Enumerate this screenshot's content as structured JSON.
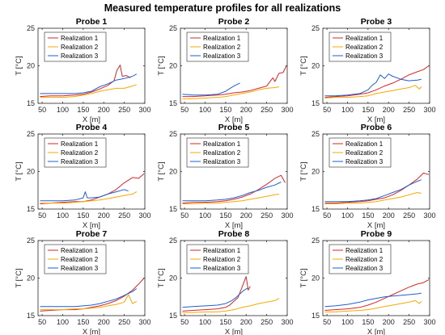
{
  "figure": {
    "title": "Measured temperature profiles for all realizations"
  },
  "chart_data": {
    "type": "line",
    "layout": "3x3 grid",
    "xlabel": "X [m]",
    "ylabel": "T [°C]",
    "xlim": [
      40,
      300
    ],
    "ylim": [
      15,
      25
    ],
    "xticks": [
      50,
      100,
      150,
      200,
      250,
      300
    ],
    "yticks": [
      15,
      20,
      25
    ],
    "legend_position": "top-left",
    "series_names": [
      "Realization 1",
      "Realization 2",
      "Realization 3"
    ],
    "series_colors": [
      "#d62728",
      "#f5a800",
      "#1f5fd0"
    ],
    "panels": [
      {
        "title": "Probe 1",
        "series": [
          {
            "name": "Realization 1",
            "x": [
              45,
              70,
              100,
              130,
              150,
              170,
              190,
              210,
              225,
              232,
              240,
              245,
              255,
              265
            ],
            "y": [
              15.9,
              16.0,
              16.0,
              16.1,
              16.2,
              16.5,
              16.9,
              17.4,
              18.0,
              19.4,
              20.1,
              18.6,
              18.7,
              18.4
            ]
          },
          {
            "name": "Realization 2",
            "x": [
              45,
              70,
              100,
              130,
              150,
              170,
              190,
              210,
              230,
              250,
              270,
              280
            ],
            "y": [
              15.8,
              15.8,
              15.8,
              15.9,
              16.1,
              16.3,
              16.6,
              16.8,
              17.0,
              17.0,
              17.3,
              17.5
            ]
          },
          {
            "name": "Realization 3",
            "x": [
              45,
              70,
              100,
              130,
              150,
              170,
              190,
              210,
              230,
              250,
              270,
              280
            ],
            "y": [
              16.3,
              16.3,
              16.3,
              16.3,
              16.4,
              16.6,
              17.2,
              17.6,
              18.1,
              18.3,
              18.6,
              18.9
            ]
          }
        ]
      },
      {
        "title": "Probe 2",
        "series": [
          {
            "name": "Realization 1",
            "x": [
              45,
              70,
              100,
              130,
              150,
              170,
              190,
              210,
              230,
              250,
              265,
              270,
              280,
              290,
              298
            ],
            "y": [
              15.9,
              15.9,
              16.0,
              16.1,
              16.2,
              16.4,
              16.5,
              16.7,
              17.0,
              17.3,
              18.4,
              17.9,
              19.0,
              19.1,
              20.0
            ]
          },
          {
            "name": "Realization 2",
            "x": [
              45,
              70,
              100,
              130,
              150,
              170,
              190,
              210,
              230,
              250,
              270,
              280
            ],
            "y": [
              15.6,
              15.6,
              15.7,
              15.8,
              15.9,
              16.1,
              16.3,
              16.5,
              16.8,
              17.0,
              17.1,
              17.2
            ]
          },
          {
            "name": "Realization 3",
            "x": [
              45,
              70,
              100,
              130,
              150,
              170,
              185
            ],
            "y": [
              16.2,
              16.1,
              16.1,
              16.2,
              16.6,
              17.3,
              17.7
            ]
          }
        ]
      },
      {
        "title": "Probe 3",
        "series": [
          {
            "name": "Realization 1",
            "x": [
              45,
              70,
              100,
              130,
              150,
              170,
              190,
              210,
              230,
              250,
              270,
              285,
              298
            ],
            "y": [
              15.8,
              15.9,
              16.0,
              16.2,
              16.4,
              16.8,
              17.3,
              17.7,
              18.2,
              18.8,
              19.2,
              19.5,
              20.0
            ]
          },
          {
            "name": "Realization 2",
            "x": [
              45,
              70,
              100,
              130,
              150,
              170,
              190,
              210,
              230,
              250,
              265,
              275,
              280
            ],
            "y": [
              15.7,
              15.8,
              15.8,
              15.9,
              16.0,
              16.3,
              16.5,
              16.7,
              16.9,
              17.1,
              17.4,
              16.9,
              17.2
            ]
          },
          {
            "name": "Realization 3",
            "x": [
              45,
              70,
              100,
              130,
              150,
              160,
              170,
              180,
              190,
              200,
              210,
              230,
              250,
              270,
              280
            ],
            "y": [
              16.0,
              16.0,
              16.1,
              16.3,
              16.8,
              17.4,
              17.8,
              18.8,
              18.3,
              18.9,
              18.6,
              18.2,
              18.0,
              18.1,
              18.2
            ]
          }
        ]
      },
      {
        "title": "Probe 4",
        "series": [
          {
            "name": "Realization 1",
            "x": [
              45,
              70,
              100,
              130,
              150,
              170,
              190,
              210,
              230,
              250,
              270,
              285,
              298
            ],
            "y": [
              15.7,
              15.8,
              15.9,
              16.0,
              16.0,
              16.2,
              16.6,
              17.0,
              17.6,
              18.5,
              19.2,
              19.1,
              19.7
            ]
          },
          {
            "name": "Realization 2",
            "x": [
              45,
              70,
              100,
              130,
              150,
              170,
              190,
              210,
              230,
              250,
              270,
              280
            ],
            "y": [
              15.8,
              15.8,
              15.8,
              15.9,
              16.0,
              16.1,
              16.2,
              16.4,
              16.6,
              16.8,
              17.0,
              17.3
            ]
          },
          {
            "name": "Realization 3",
            "x": [
              45,
              70,
              100,
              130,
              150,
              155,
              160,
              170,
              190,
              210,
              230,
              250,
              260
            ],
            "y": [
              16.1,
              16.1,
              16.1,
              16.2,
              16.5,
              17.3,
              16.5,
              16.5,
              16.6,
              17.0,
              17.3,
              17.6,
              17.4
            ]
          }
        ]
      },
      {
        "title": "Probe 5",
        "series": [
          {
            "name": "Realization 1",
            "x": [
              45,
              70,
              100,
              130,
              150,
              170,
              190,
              210,
              230,
              250,
              270,
              285,
              295
            ],
            "y": [
              15.8,
              15.9,
              15.9,
              16.0,
              16.1,
              16.3,
              16.6,
              17.0,
              17.6,
              18.3,
              19.1,
              19.5,
              18.5
            ]
          },
          {
            "name": "Realization 2",
            "x": [
              45,
              70,
              100,
              130,
              150,
              170,
              190,
              210,
              230,
              250,
              270,
              280
            ],
            "y": [
              15.7,
              15.7,
              15.8,
              15.8,
              15.9,
              16.0,
              16.1,
              16.3,
              16.5,
              16.7,
              16.9,
              17.0
            ]
          },
          {
            "name": "Realization 3",
            "x": [
              45,
              70,
              100,
              130,
              150,
              170,
              190,
              210,
              230,
              250,
              270,
              285
            ],
            "y": [
              16.1,
              16.1,
              16.1,
              16.2,
              16.3,
              16.5,
              16.8,
              17.2,
              17.5,
              17.9,
              18.2,
              18.6
            ]
          }
        ]
      },
      {
        "title": "Probe 6",
        "series": [
          {
            "name": "Realization 1",
            "x": [
              45,
              70,
              100,
              130,
              150,
              170,
              190,
              210,
              230,
              250,
              270,
              285,
              298
            ],
            "y": [
              15.8,
              15.8,
              15.9,
              16.0,
              16.1,
              16.3,
              16.5,
              16.9,
              17.5,
              18.2,
              19.0,
              19.8,
              19.6
            ]
          },
          {
            "name": "Realization 2",
            "x": [
              45,
              70,
              100,
              130,
              150,
              170,
              190,
              210,
              230,
              250,
              270,
              280
            ],
            "y": [
              15.7,
              15.7,
              15.8,
              15.8,
              15.9,
              16.0,
              16.2,
              16.4,
              16.6,
              16.9,
              17.2,
              17.1
            ]
          },
          {
            "name": "Realization 3",
            "x": [
              45,
              70,
              100,
              130,
              150,
              170,
              190,
              210,
              230,
              250,
              270,
              280
            ],
            "y": [
              16.0,
              16.0,
              16.0,
              16.1,
              16.2,
              16.4,
              16.8,
              17.2,
              17.6,
              18.2,
              18.7,
              18.9
            ]
          }
        ]
      },
      {
        "title": "Probe 7",
        "series": [
          {
            "name": "Realization 1",
            "x": [
              45,
              70,
              100,
              130,
              150,
              170,
              190,
              210,
              230,
              250,
              270,
              285,
              298
            ],
            "y": [
              15.6,
              15.7,
              15.8,
              15.8,
              15.9,
              16.1,
              16.3,
              16.6,
              17.0,
              17.6,
              18.4,
              19.2,
              20.0
            ]
          },
          {
            "name": "Realization 2",
            "x": [
              45,
              70,
              100,
              130,
              150,
              170,
              190,
              210,
              230,
              250,
              260,
              270,
              280
            ],
            "y": [
              15.8,
              15.8,
              15.8,
              15.9,
              15.9,
              16.0,
              16.1,
              16.3,
              16.5,
              16.8,
              17.8,
              16.6,
              16.9
            ]
          },
          {
            "name": "Realization 3",
            "x": [
              45,
              70,
              100,
              130,
              150,
              170,
              190,
              210,
              230,
              250,
              270,
              280
            ],
            "y": [
              16.2,
              16.2,
              16.2,
              16.2,
              16.3,
              16.4,
              16.6,
              16.9,
              17.2,
              17.7,
              18.2,
              18.6
            ]
          }
        ]
      },
      {
        "title": "Probe 8",
        "series": [
          {
            "name": "Realization 1",
            "x": [
              45,
              70,
              100,
              130,
              150,
              160,
              170,
              180,
              190,
              195,
              200,
              205,
              210
            ],
            "y": [
              15.6,
              15.7,
              15.8,
              15.9,
              16.1,
              16.4,
              16.9,
              17.4,
              18.8,
              19.5,
              20.2,
              18.4,
              18.9
            ]
          },
          {
            "name": "Realization 2",
            "x": [
              45,
              70,
              100,
              130,
              150,
              170,
              190,
              210,
              230,
              250,
              270,
              280
            ],
            "y": [
              15.4,
              15.4,
              15.5,
              15.5,
              15.6,
              15.8,
              16.1,
              16.3,
              16.6,
              16.8,
              17.0,
              17.3
            ]
          },
          {
            "name": "Realization 3",
            "x": [
              45,
              70,
              100,
              130,
              150,
              165,
              175,
              185,
              195,
              205
            ],
            "y": [
              16.1,
              16.2,
              16.3,
              16.4,
              16.6,
              17.0,
              17.4,
              17.9,
              18.4,
              18.7
            ]
          }
        ]
      },
      {
        "title": "Probe 9",
        "series": [
          {
            "name": "Realization 1",
            "x": [
              45,
              70,
              100,
              130,
              150,
              170,
              190,
              210,
              230,
              250,
              270,
              285,
              298
            ],
            "y": [
              15.7,
              15.8,
              15.9,
              16.1,
              16.4,
              16.8,
              17.3,
              17.8,
              18.3,
              18.8,
              19.2,
              19.4,
              19.8
            ]
          },
          {
            "name": "Realization 2",
            "x": [
              45,
              70,
              100,
              130,
              150,
              170,
              190,
              210,
              230,
              250,
              265,
              275,
              280
            ],
            "y": [
              15.5,
              15.5,
              15.6,
              15.7,
              15.8,
              16.0,
              16.2,
              16.4,
              16.6,
              16.8,
              17.0,
              16.6,
              16.9
            ]
          },
          {
            "name": "Realization 3",
            "x": [
              45,
              70,
              100,
              130,
              150,
              170,
              190,
              210,
              230,
              250,
              270,
              280
            ],
            "y": [
              16.2,
              16.3,
              16.5,
              16.8,
              17.1,
              17.3,
              17.5,
              17.6,
              17.7,
              17.8,
              17.9,
              18.0
            ]
          }
        ]
      }
    ]
  }
}
